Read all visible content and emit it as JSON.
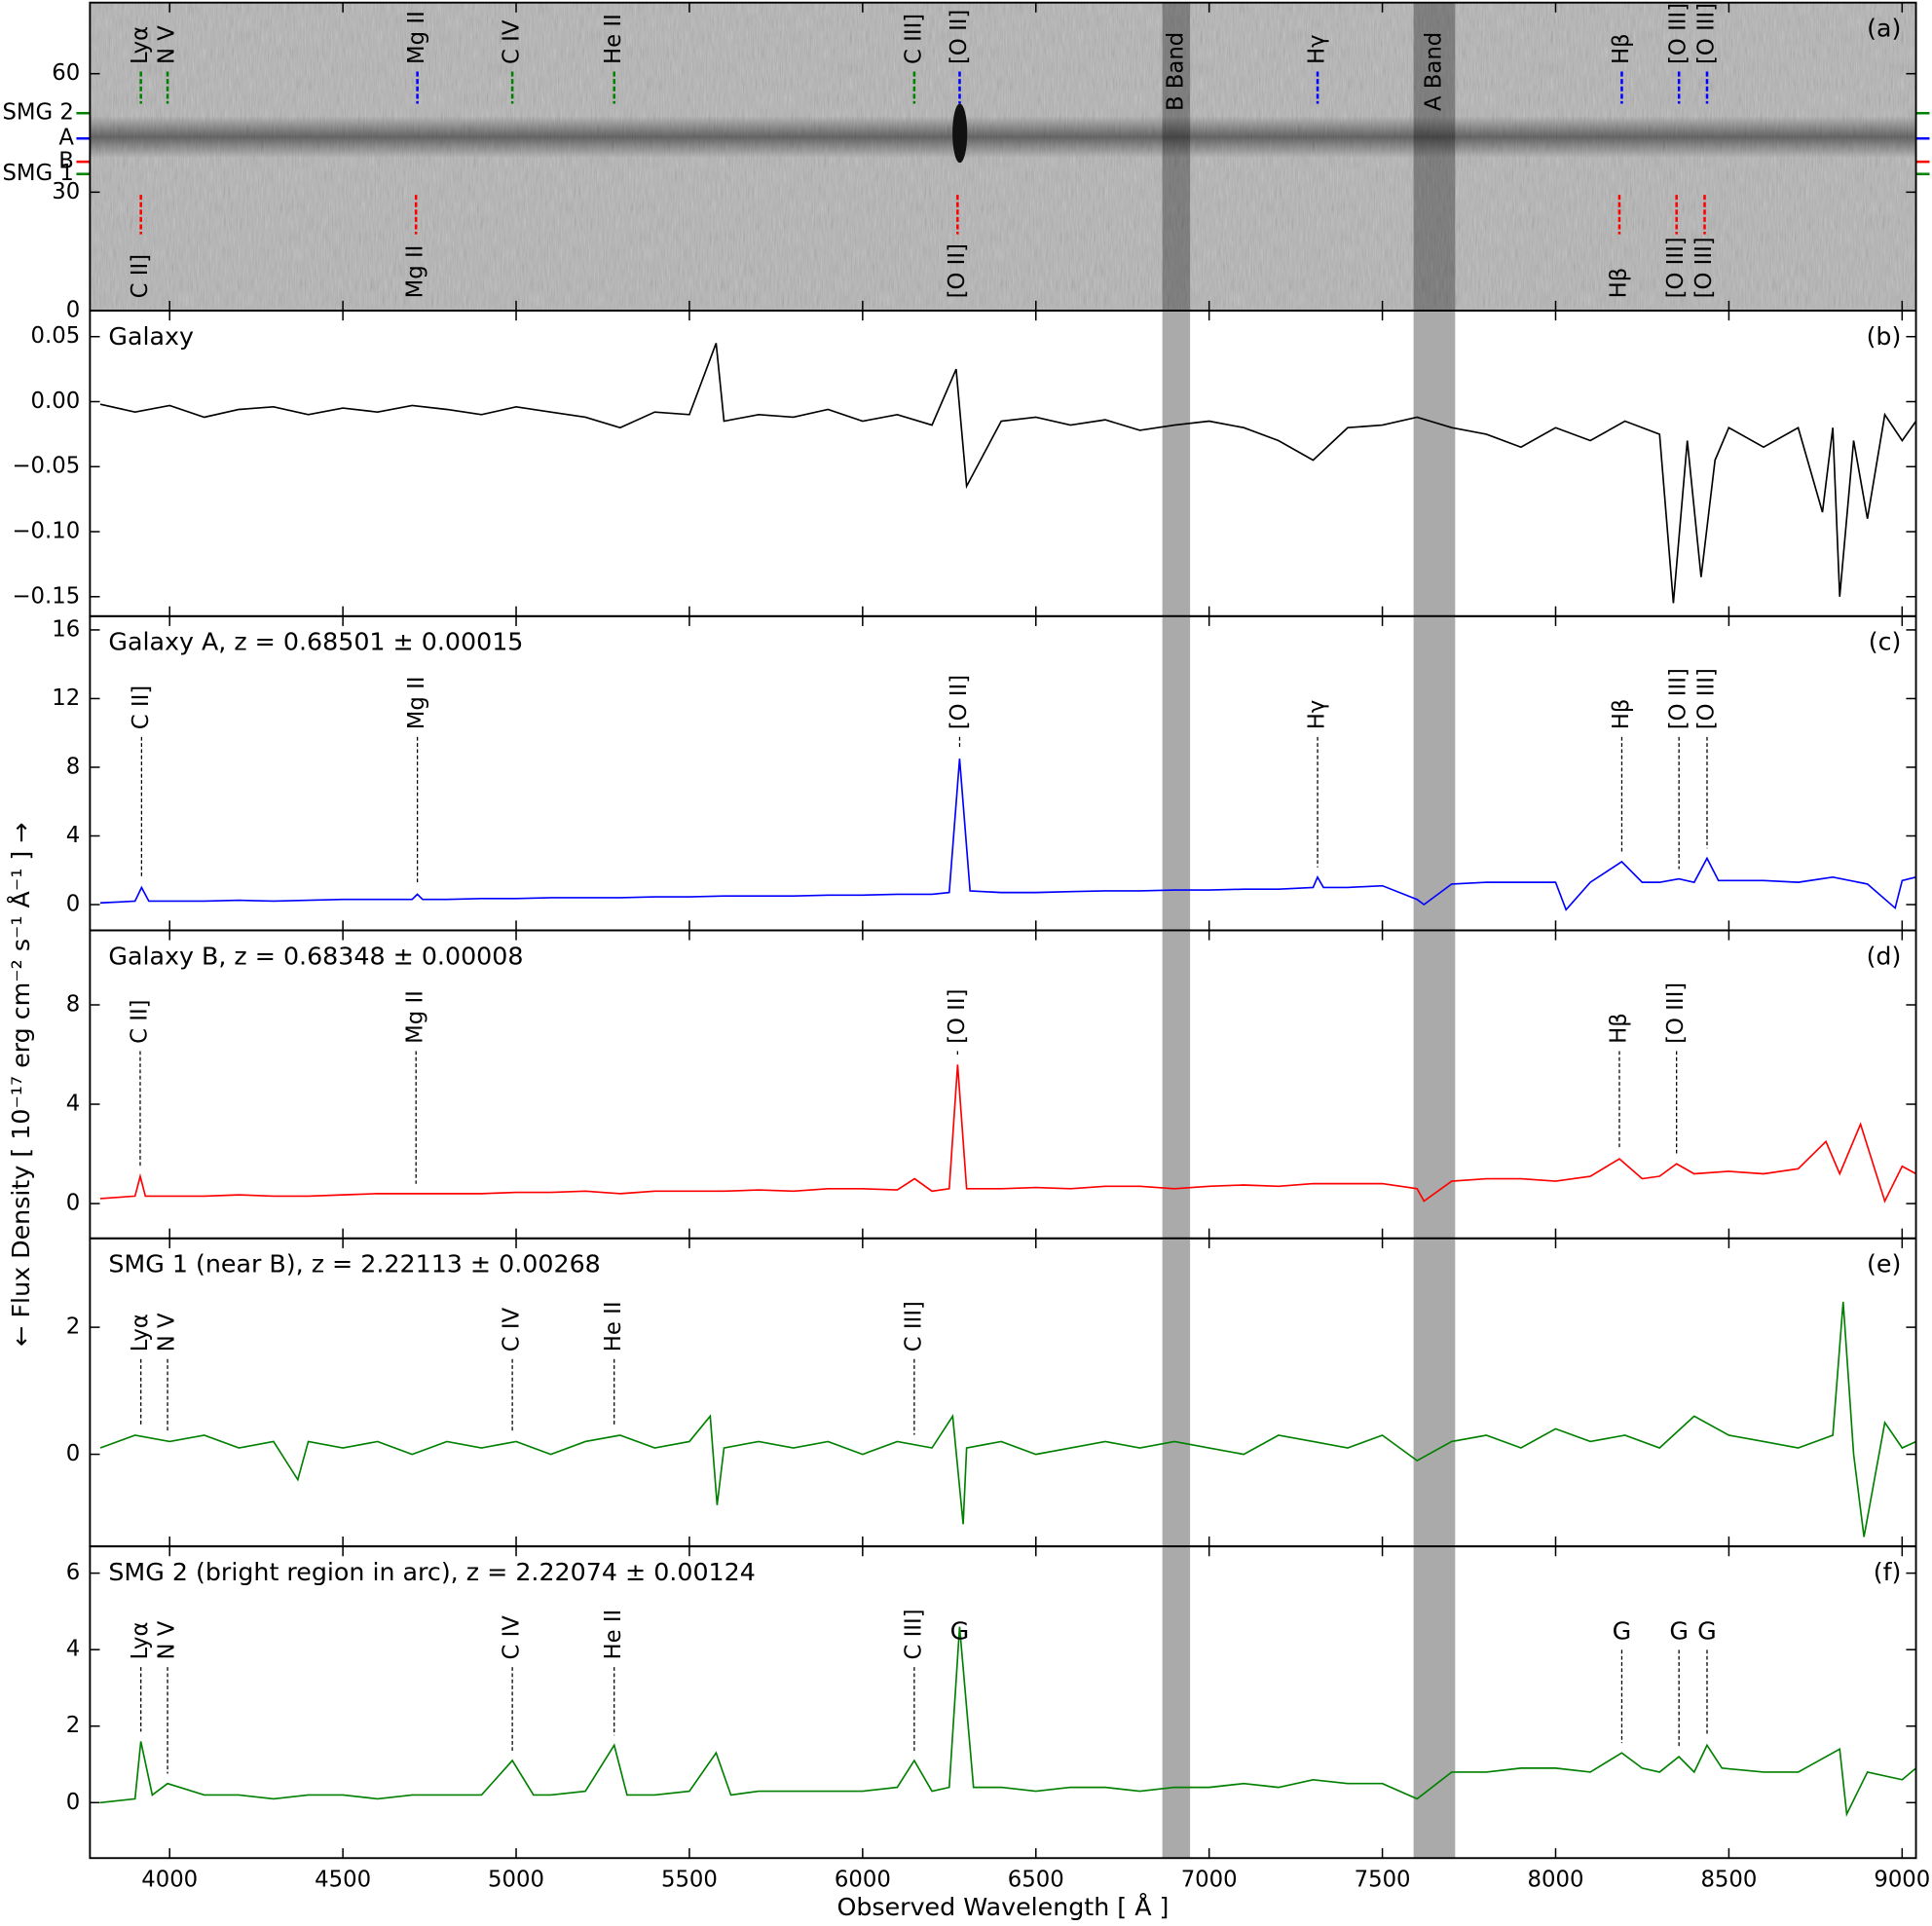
{
  "chart_data": [
    {
      "type": "image",
      "label": "(a)",
      "ylim": [
        0,
        78
      ],
      "yticks": [
        0,
        30,
        60
      ],
      "bands": [
        {
          "label": "B Band",
          "x": [
            6865,
            6945
          ]
        },
        {
          "label": "A Band",
          "x": [
            7590,
            7710
          ]
        }
      ],
      "markers": [
        {
          "label": "SMG 2",
          "y": 50,
          "color": "#008000"
        },
        {
          "label": "A",
          "y": 43.6,
          "color": "#0000ff"
        },
        {
          "label": "B",
          "y": 37.7,
          "color": "#ff0000"
        },
        {
          "label": "SMG 1",
          "y": 34.6,
          "color": "#008000"
        }
      ],
      "lines": [
        {
          "label": "Lyα",
          "x": 3917,
          "color": "#008000",
          "side": "top"
        },
        {
          "label": "N V",
          "x": 3994,
          "color": "#008000",
          "side": "top"
        },
        {
          "label": "Mg II",
          "x": 4715,
          "color": "#0000ff",
          "side": "top"
        },
        {
          "label": "C IV",
          "x": 4989,
          "color": "#008000",
          "side": "top"
        },
        {
          "label": "He II",
          "x": 5283,
          "color": "#008000",
          "side": "top"
        },
        {
          "label": "C III]",
          "x": 6149,
          "color": "#008000",
          "side": "top"
        },
        {
          "label": "[O II]",
          "x": 6280,
          "color": "#0000ff",
          "side": "top"
        },
        {
          "label": "Hγ",
          "x": 7313,
          "color": "#0000ff",
          "side": "top"
        },
        {
          "label": "Hβ",
          "x": 8191,
          "color": "#0000ff",
          "side": "top"
        },
        {
          "label": "[O III]",
          "x": 8356,
          "color": "#0000ff",
          "side": "top"
        },
        {
          "label": "[O III]",
          "x": 8437,
          "color": "#0000ff",
          "side": "top"
        },
        {
          "label": "C II]",
          "x": 3917,
          "color": "#ff0000",
          "side": "bottom"
        },
        {
          "label": "Mg II",
          "x": 4711,
          "color": "#ff0000",
          "side": "bottom"
        },
        {
          "label": "[O II]",
          "x": 6274,
          "color": "#ff0000",
          "side": "bottom"
        },
        {
          "label": "Hβ",
          "x": 8184,
          "color": "#ff0000",
          "side": "bottom"
        },
        {
          "label": "[O III]",
          "x": 8349,
          "color": "#ff0000",
          "side": "bottom"
        },
        {
          "label": "[O III]",
          "x": 8430,
          "color": "#ff0000",
          "side": "bottom"
        }
      ]
    },
    {
      "type": "line",
      "label": "(b)",
      "title": "Galaxy",
      "color": "#000000",
      "ylim": [
        -0.165,
        0.07
      ],
      "yticks": [
        {
          "value": 0.05,
          "label": "0.05"
        },
        {
          "value": 0,
          "label": "0.00"
        },
        {
          "value": -0.05,
          "label": "−0.05"
        },
        {
          "value": -0.1,
          "label": "−0.10"
        },
        {
          "value": -0.15,
          "label": "−0.15"
        }
      ],
      "x": [
        3800,
        3900,
        4000,
        4100,
        4200,
        4300,
        4400,
        4500,
        4600,
        4700,
        4800,
        4900,
        5000,
        5100,
        5200,
        5300,
        5400,
        5500,
        5577,
        5600,
        5700,
        5800,
        5900,
        6000,
        6100,
        6200,
        6270,
        6300,
        6400,
        6500,
        6600,
        6700,
        6800,
        6900,
        7000,
        7100,
        7200,
        7300,
        7400,
        7500,
        7600,
        7700,
        7800,
        7900,
        8000,
        8100,
        8200,
        8300,
        8340,
        8380,
        8420,
        8460,
        8500,
        8600,
        8700,
        8770,
        8800,
        8820,
        8860,
        8900,
        8950,
        9000,
        9040
      ],
      "values": [
        -0.002,
        -0.008,
        -0.003,
        -0.012,
        -0.006,
        -0.004,
        -0.01,
        -0.005,
        -0.008,
        -0.003,
        -0.006,
        -0.01,
        -0.004,
        -0.008,
        -0.012,
        -0.02,
        -0.008,
        -0.01,
        0.045,
        -0.015,
        -0.01,
        -0.012,
        -0.006,
        -0.015,
        -0.01,
        -0.018,
        0.025,
        -0.065,
        -0.015,
        -0.012,
        -0.018,
        -0.014,
        -0.022,
        -0.018,
        -0.015,
        -0.02,
        -0.03,
        -0.045,
        -0.02,
        -0.018,
        -0.012,
        -0.02,
        -0.025,
        -0.035,
        -0.02,
        -0.03,
        -0.015,
        -0.025,
        -0.155,
        -0.03,
        -0.135,
        -0.045,
        -0.02,
        -0.035,
        -0.02,
        -0.085,
        -0.02,
        -0.15,
        -0.03,
        -0.09,
        -0.01,
        -0.03,
        -0.015
      ],
      "lines": []
    },
    {
      "type": "line",
      "label": "(c)",
      "title": "Galaxy A, z = 0.68501 ± 0.00015",
      "color": "#0000ff",
      "ylim": [
        -1.5,
        16.8
      ],
      "yticks": [
        0,
        4,
        8,
        12,
        16
      ],
      "x": [
        3800,
        3900,
        3919,
        3940,
        4000,
        4100,
        4200,
        4300,
        4400,
        4500,
        4600,
        4700,
        4715,
        4730,
        4800,
        4900,
        5000,
        5100,
        5200,
        5300,
        5400,
        5500,
        5600,
        5700,
        5800,
        5900,
        6000,
        6100,
        6200,
        6250,
        6280,
        6310,
        6400,
        6500,
        6600,
        6700,
        6800,
        6900,
        7000,
        7100,
        7200,
        7300,
        7313,
        7330,
        7400,
        7500,
        7600,
        7620,
        7700,
        7800,
        7900,
        8000,
        8030,
        8100,
        8191,
        8250,
        8300,
        8356,
        8400,
        8437,
        8470,
        8500,
        8600,
        8700,
        8800,
        8900,
        8980,
        9000,
        9040
      ],
      "values": [
        0.1,
        0.2,
        1.0,
        0.2,
        0.2,
        0.2,
        0.25,
        0.2,
        0.25,
        0.3,
        0.3,
        0.3,
        0.6,
        0.3,
        0.3,
        0.35,
        0.35,
        0.4,
        0.4,
        0.4,
        0.45,
        0.45,
        0.5,
        0.5,
        0.5,
        0.55,
        0.55,
        0.6,
        0.6,
        0.7,
        8.5,
        0.8,
        0.7,
        0.7,
        0.75,
        0.8,
        0.8,
        0.85,
        0.85,
        0.9,
        0.9,
        1.0,
        1.6,
        1.0,
        1.0,
        1.1,
        0.3,
        0.0,
        1.2,
        1.3,
        1.3,
        1.3,
        -0.3,
        1.3,
        2.5,
        1.3,
        1.3,
        1.5,
        1.3,
        2.7,
        1.4,
        1.4,
        1.4,
        1.3,
        1.6,
        1.2,
        -0.2,
        1.4,
        1.6
      ],
      "lines": [
        {
          "label": "C II]",
          "x": 3919
        },
        {
          "label": "Mg II",
          "x": 4715
        },
        {
          "label": "[O II]",
          "x": 6280
        },
        {
          "label": "Hγ",
          "x": 7313
        },
        {
          "label": "Hβ",
          "x": 8191
        },
        {
          "label": "[O III]",
          "x": 8356
        },
        {
          "label": "[O III]",
          "x": 8437
        }
      ]
    },
    {
      "type": "line",
      "label": "(d)",
      "title": "Galaxy B, z = 0.68348 ± 0.00008",
      "color": "#ff0000",
      "ylim": [
        -1.4,
        11
      ],
      "yticks": [
        0,
        4,
        8
      ],
      "x": [
        3800,
        3900,
        3915,
        3930,
        4000,
        4100,
        4200,
        4300,
        4400,
        4500,
        4600,
        4700,
        4800,
        4900,
        5000,
        5100,
        5200,
        5300,
        5400,
        5500,
        5600,
        5700,
        5800,
        5900,
        6000,
        6100,
        6150,
        6200,
        6250,
        6274,
        6300,
        6400,
        6500,
        6600,
        6700,
        6800,
        6900,
        7000,
        7100,
        7200,
        7300,
        7400,
        7500,
        7600,
        7620,
        7700,
        7800,
        7900,
        8000,
        8100,
        8184,
        8250,
        8300,
        8349,
        8400,
        8500,
        8600,
        8700,
        8780,
        8820,
        8880,
        8950,
        9000,
        9040
      ],
      "values": [
        0.2,
        0.3,
        1.1,
        0.3,
        0.3,
        0.3,
        0.35,
        0.3,
        0.3,
        0.35,
        0.4,
        0.4,
        0.4,
        0.4,
        0.45,
        0.45,
        0.5,
        0.4,
        0.5,
        0.5,
        0.5,
        0.55,
        0.5,
        0.6,
        0.6,
        0.55,
        1.0,
        0.5,
        0.6,
        5.6,
        0.6,
        0.6,
        0.65,
        0.6,
        0.7,
        0.7,
        0.6,
        0.7,
        0.75,
        0.7,
        0.8,
        0.8,
        0.8,
        0.6,
        0.1,
        0.9,
        1.0,
        1.0,
        0.9,
        1.1,
        1.8,
        1.0,
        1.1,
        1.6,
        1.2,
        1.3,
        1.2,
        1.4,
        2.5,
        1.2,
        3.2,
        0.1,
        1.5,
        1.2
      ],
      "lines": [
        {
          "label": "C II]",
          "x": 3915
        },
        {
          "label": "Mg II",
          "x": 4711
        },
        {
          "label": "[O II]",
          "x": 6274
        },
        {
          "label": "Hβ",
          "x": 8184
        },
        {
          "label": "[O III]",
          "x": 8349
        }
      ]
    },
    {
      "type": "line",
      "label": "(e)",
      "title": "SMG 1 (near B), z = 2.22113 ± 0.00268",
      "color": "#008000",
      "ylim": [
        -1.45,
        3.4
      ],
      "yticks": [
        0,
        2
      ],
      "x": [
        3800,
        3900,
        4000,
        4100,
        4200,
        4300,
        4370,
        4400,
        4500,
        4600,
        4700,
        4800,
        4900,
        5000,
        5100,
        5200,
        5300,
        5400,
        5500,
        5560,
        5580,
        5600,
        5700,
        5800,
        5900,
        6000,
        6100,
        6200,
        6260,
        6290,
        6300,
        6400,
        6500,
        6600,
        6700,
        6800,
        6900,
        7000,
        7100,
        7200,
        7300,
        7400,
        7500,
        7600,
        7700,
        7800,
        7900,
        8000,
        8100,
        8200,
        8300,
        8400,
        8500,
        8600,
        8700,
        8800,
        8830,
        8860,
        8890,
        8950,
        9000,
        9040
      ],
      "values": [
        0.1,
        0.3,
        0.2,
        0.3,
        0.1,
        0.2,
        -0.4,
        0.2,
        0.1,
        0.2,
        0.0,
        0.2,
        0.1,
        0.2,
        0.0,
        0.2,
        0.3,
        0.1,
        0.2,
        0.6,
        -0.8,
        0.1,
        0.2,
        0.1,
        0.2,
        0.0,
        0.2,
        0.1,
        0.6,
        -1.1,
        0.1,
        0.2,
        0.0,
        0.1,
        0.2,
        0.1,
        0.2,
        0.1,
        0.0,
        0.3,
        0.2,
        0.1,
        0.3,
        -0.1,
        0.2,
        0.3,
        0.1,
        0.4,
        0.2,
        0.3,
        0.1,
        0.6,
        0.3,
        0.2,
        0.1,
        0.3,
        2.4,
        0.0,
        -1.3,
        0.5,
        0.1,
        0.2
      ],
      "lines": [
        {
          "label": "Lyα",
          "x": 3917
        },
        {
          "label": "N V",
          "x": 3994
        },
        {
          "label": "C IV",
          "x": 4989
        },
        {
          "label": "He II",
          "x": 5283
        },
        {
          "label": "C III]",
          "x": 6149
        }
      ]
    },
    {
      "type": "line",
      "label": "(f)",
      "title": "SMG 2 (bright region in arc), z = 2.22074 ± 0.00124",
      "color": "#008000",
      "ylim": [
        -1.45,
        6.7
      ],
      "yticks": [
        0,
        2,
        4,
        6
      ],
      "xlim": [
        3770,
        9040
      ],
      "xticks": [
        4000,
        4500,
        5000,
        5500,
        6000,
        6500,
        7000,
        7500,
        8000,
        8500,
        9000
      ],
      "xlabel": "Observed Wavelength [ Å ]",
      "ylabel": "← Flux Density [ 10⁻¹⁷ erg cm⁻² s⁻¹ Å⁻¹ ] →",
      "x": [
        3800,
        3900,
        3917,
        3950,
        3994,
        4100,
        4200,
        4300,
        4400,
        4500,
        4600,
        4700,
        4800,
        4900,
        4989,
        5050,
        5100,
        5200,
        5283,
        5320,
        5400,
        5500,
        5577,
        5620,
        5700,
        5800,
        5900,
        6000,
        6100,
        6149,
        6200,
        6250,
        6280,
        6320,
        6400,
        6500,
        6600,
        6700,
        6800,
        6900,
        7000,
        7100,
        7200,
        7300,
        7400,
        7500,
        7600,
        7700,
        7800,
        7900,
        8000,
        8100,
        8191,
        8250,
        8300,
        8356,
        8400,
        8437,
        8480,
        8600,
        8700,
        8820,
        8840,
        8900,
        9000,
        9040
      ],
      "values": [
        0.0,
        0.1,
        1.6,
        0.2,
        0.5,
        0.2,
        0.2,
        0.1,
        0.2,
        0.2,
        0.1,
        0.2,
        0.2,
        0.2,
        1.1,
        0.2,
        0.2,
        0.3,
        1.5,
        0.2,
        0.2,
        0.3,
        1.3,
        0.2,
        0.3,
        0.3,
        0.3,
        0.3,
        0.4,
        1.1,
        0.3,
        0.4,
        4.6,
        0.4,
        0.4,
        0.3,
        0.4,
        0.4,
        0.3,
        0.4,
        0.4,
        0.5,
        0.4,
        0.6,
        0.5,
        0.5,
        0.1,
        0.8,
        0.8,
        0.9,
        0.9,
        0.8,
        1.3,
        0.9,
        0.8,
        1.2,
        0.8,
        1.5,
        0.9,
        0.8,
        0.8,
        1.4,
        -0.3,
        0.8,
        0.6,
        0.9
      ],
      "lines": [
        {
          "label": "Lyα",
          "x": 3917
        },
        {
          "label": "N V",
          "x": 3994
        },
        {
          "label": "C IV",
          "x": 4989
        },
        {
          "label": "He II",
          "x": 5283
        },
        {
          "label": "C III]",
          "x": 6149
        },
        {
          "label": "G",
          "x": 6280
        },
        {
          "label": "G",
          "x": 8191
        },
        {
          "label": "G",
          "x": 8356
        },
        {
          "label": "G",
          "x": 8437
        }
      ]
    }
  ]
}
